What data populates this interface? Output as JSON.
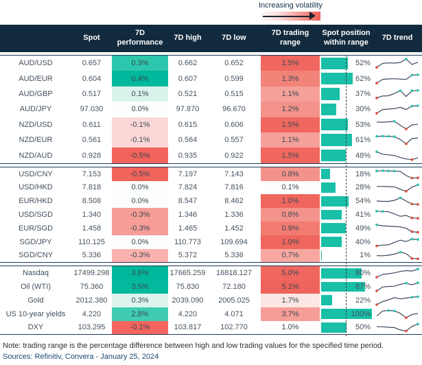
{
  "volatility_legend": {
    "label": "Increasing volatility"
  },
  "header": {
    "spot": "Spot",
    "performance": "7D\nperformance",
    "high": "7D high",
    "low": "7D low",
    "range": "7D trading\nrange",
    "position": "Spot position\nwithin range",
    "trend": "7D trend"
  },
  "theme": {
    "header_bg": "#122a3d",
    "block_border": "#1b3a5a",
    "bar_teal": "#19bfa7",
    "spark_line": "#39485a",
    "spark_min_marker": "#e05045",
    "spark_max_marker": "#2fc4b2",
    "strong_green": "#00b89b",
    "strong_red": "#ef665e"
  },
  "chart_data": {
    "type": "table",
    "columns": [
      "",
      "Spot",
      "7D performance",
      "7D high",
      "7D low",
      "7D trading range",
      "Spot position within range",
      "7D trend"
    ],
    "blocks": [
      {
        "rows": [
          {
            "label": "AUD/USD",
            "spot": "0.657",
            "perf": "0.3%",
            "perf_bg": "#2cc7ac",
            "high": "0.662",
            "low": "0.652",
            "range": "1.5%",
            "range_bg": "#ef675f",
            "position_pct": 52,
            "position_label": "52%",
            "spark": [
              0.02,
              0.48,
              0.52,
              0.5,
              0.58,
              0.95,
              0.35,
              0.6
            ]
          },
          {
            "label": "AUD/EUR",
            "spot": "0.604",
            "perf": "0.4%",
            "perf_bg": "#00b89b",
            "high": "0.607",
            "low": "0.599",
            "range": "1.3%",
            "range_bg": "#f18379",
            "position_pct": 62,
            "position_label": "62%",
            "spark": [
              0.02,
              0.45,
              0.5,
              0.52,
              0.48,
              0.44,
              0.92,
              0.96
            ]
          },
          {
            "label": "AUD/GBP",
            "spot": "0.517",
            "perf": "0.1%",
            "perf_bg": "#d8f3ec",
            "high": "0.521",
            "low": "0.515",
            "range": "1.1%",
            "range_bg": "#f5a099",
            "position_pct": 37,
            "position_label": "37%",
            "spark": [
              0.05,
              0.28,
              0.3,
              0.55,
              0.88,
              0.22,
              0.86,
              0.9
            ]
          },
          {
            "label": "AUD/JPY",
            "spot": "97.030",
            "perf": "0.0%",
            "perf_bg": "#fcfefd",
            "high": "97.870",
            "low": "96.670",
            "range": "1.2%",
            "range_bg": "#f3928a",
            "position_pct": 30,
            "position_label": "30%",
            "spark": [
              0.03,
              0.45,
              0.5,
              0.55,
              0.7,
              0.45,
              0.84,
              0.88
            ]
          },
          {
            "label": "NZD/USD",
            "spot": "0.611",
            "perf": "-0.1%",
            "perf_bg": "#fbd8d7",
            "high": "0.615",
            "low": "0.606",
            "range": "1.5%",
            "range_bg": "#ef675f",
            "position_pct": 53,
            "position_label": "53%",
            "spark": [
              0.82,
              0.8,
              0.84,
              0.9,
              0.45,
              0.04,
              0.5,
              0.56
            ]
          },
          {
            "label": "NZD/EUR",
            "spot": "0.561",
            "perf": "-0.1%",
            "perf_bg": "#fbd8d7",
            "high": "0.564",
            "low": "0.557",
            "range": "1.1%",
            "range_bg": "#f5a099",
            "position_pct": 61,
            "position_label": "61%",
            "spark": [
              0.9,
              0.93,
              0.9,
              0.88,
              0.55,
              0.06,
              0.65,
              0.72
            ]
          },
          {
            "label": "NZD/AUD",
            "spot": "0.928",
            "perf": "-0.5%",
            "perf_bg": "#f2635c",
            "high": "0.935",
            "low": "0.922",
            "range": "1.5%",
            "range_bg": "#ef675f",
            "position_pct": 48,
            "position_label": "48%",
            "spark": [
              0.95,
              0.68,
              0.6,
              0.52,
              0.3,
              0.14,
              0.06,
              0.28
            ]
          }
        ]
      },
      {
        "rows": [
          {
            "label": "USD/CNY",
            "spot": "7.153",
            "perf": "-0.5%",
            "perf_bg": "#f2635c",
            "high": "7.197",
            "low": "7.143",
            "range": "0.8%",
            "range_bg": "#f4938b",
            "position_pct": 18,
            "position_label": "18%",
            "spark": [
              0.86,
              0.9,
              0.88,
              0.86,
              0.82,
              0.35,
              0.08,
              0.1
            ]
          },
          {
            "label": "USD/HKD",
            "spot": "7.818",
            "perf": "0.0%",
            "perf_bg": "#fcfdfd",
            "high": "7.824",
            "low": "7.816",
            "range": "0.1%",
            "range_bg": "#fefefe",
            "position_pct": 28,
            "position_label": "28%",
            "spark": [
              0.6,
              0.6,
              0.58,
              0.55,
              0.28,
              0.06,
              0.52,
              0.78
            ]
          },
          {
            "label": "EUR/HKD",
            "spot": "8.508",
            "perf": "0.0%",
            "perf_bg": "#fcfdfd",
            "high": "8.547",
            "low": "8.462",
            "range": "1.0%",
            "range_bg": "#ef665e",
            "position_pct": 54,
            "position_label": "54%",
            "spark": [
              0.5,
              0.46,
              0.46,
              0.58,
              0.86,
              0.5,
              0.16,
              0.12
            ]
          },
          {
            "label": "USD/SGD",
            "spot": "1.340",
            "perf": "-0.3%",
            "perf_bg": "#f79e98",
            "high": "1.346",
            "low": "1.336",
            "range": "0.8%",
            "range_bg": "#f4938b",
            "position_pct": 41,
            "position_label": "41%",
            "spark": [
              0.9,
              0.86,
              0.84,
              0.6,
              0.32,
              0.42,
              0.14,
              0.1
            ]
          },
          {
            "label": "EUR/SGD",
            "spot": "1.458",
            "perf": "-0.3%",
            "perf_bg": "#f79e98",
            "high": "1.465",
            "low": "1.452",
            "range": "0.9%",
            "range_bg": "#f27b71",
            "position_pct": 49,
            "position_label": "49%",
            "spark": [
              0.9,
              0.8,
              0.76,
              0.72,
              0.68,
              0.52,
              0.14,
              0.08
            ]
          },
          {
            "label": "SGD/JPY",
            "spot": "110.125",
            "perf": "0.0%",
            "perf_bg": "#fcfdfd",
            "high": "110.773",
            "low": "109.694",
            "range": "1.0%",
            "range_bg": "#ef665e",
            "position_pct": 40,
            "position_label": "40%",
            "spark": [
              0.08,
              0.18,
              0.2,
              0.48,
              0.72,
              0.58,
              0.85,
              0.8
            ]
          },
          {
            "label": "SGD/CNY",
            "spot": "5.336",
            "perf": "-0.3%",
            "perf_bg": "#f9b2ad",
            "high": "5.372",
            "low": "5.336",
            "range": "0.7%",
            "range_bg": "#f7a8a1",
            "position_pct": 1,
            "position_label": "1%",
            "spark": [
              0.45,
              0.44,
              0.5,
              0.62,
              0.85,
              0.68,
              0.14,
              0.1
            ]
          }
        ]
      },
      {
        "rows": [
          {
            "label": "Nasdaq",
            "spot": "17499.298",
            "perf": "3.6%",
            "perf_bg": "#00b89b",
            "high": "17665.259",
            "low": "16818.127",
            "range": "5.0%",
            "range_bg": "#ef675f",
            "position_pct": 80,
            "position_label": "80%",
            "spark": [
              0.04,
              0.35,
              0.42,
              0.52,
              0.68,
              0.78,
              0.72,
              0.95
            ]
          },
          {
            "label": "Oil (WTI)",
            "spot": "75.360",
            "perf": "3.5%",
            "perf_bg": "#04b99d",
            "high": "75.830",
            "low": "72.180",
            "range": "5.1%",
            "range_bg": "#ee635b",
            "position_pct": 87,
            "position_label": "87%",
            "spark": [
              0.04,
              0.48,
              0.54,
              0.56,
              0.78,
              0.9,
              0.72,
              0.95
            ]
          },
          {
            "label": "Gold",
            "spot": "2012.380",
            "perf": "0.3%",
            "perf_bg": "#ddf4ee",
            "high": "2039.090",
            "low": "2005.025",
            "range": "1.7%",
            "range_bg": "#fce7e5",
            "position_pct": 22,
            "position_label": "22%",
            "spark": [
              0.04,
              0.38,
              0.58,
              0.82,
              0.68,
              0.78,
              0.88,
              0.92
            ]
          },
          {
            "label": "US 10-year yields",
            "spot": "4.220",
            "perf": "2.8%",
            "perf_bg": "#3ecbb2",
            "high": "4.220",
            "low": "4.071",
            "range": "3.7%",
            "range_bg": "#f59d96",
            "position_pct": 100,
            "position_label": "100%",
            "spark": [
              0.3,
              0.86,
              0.92,
              0.88,
              0.6,
              0.1,
              0.48,
              0.58
            ]
          },
          {
            "label": "DXY",
            "spot": "103.295",
            "perf": "-0.1%",
            "perf_bg": "#f3655e",
            "high": "103.817",
            "low": "102.770",
            "range": "1.0%",
            "range_bg": "#fefefe",
            "position_pct": 50,
            "position_label": "50%",
            "spark": [
              0.56,
              0.55,
              0.5,
              0.46,
              0.2,
              0.08,
              0.6,
              0.86
            ]
          }
        ]
      }
    ]
  },
  "footer": {
    "note": "Note: trading range is the percentage difference between high and low trading values for the specified time period.",
    "sources": "Sources: Refinitiv, Convera - January 25, 2024"
  }
}
